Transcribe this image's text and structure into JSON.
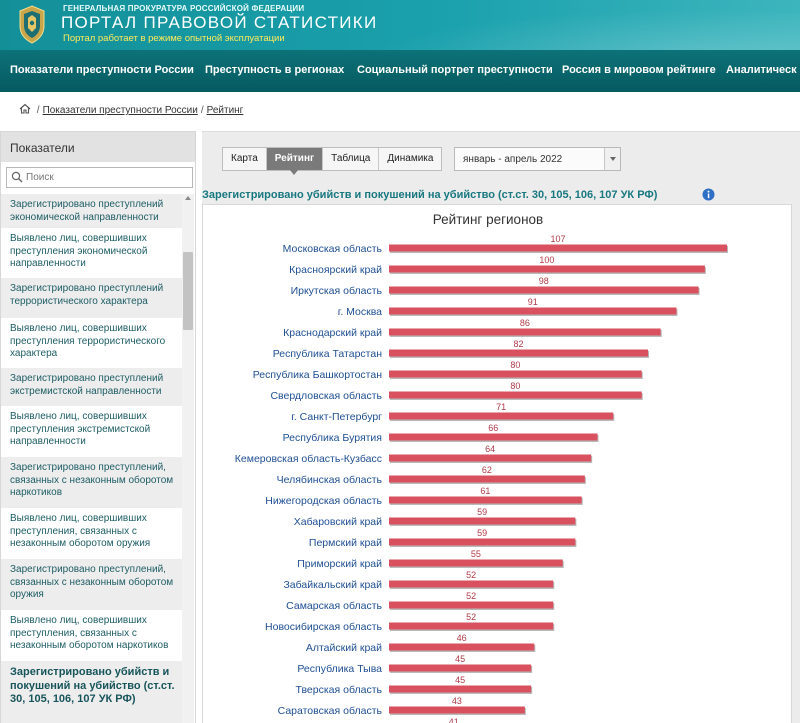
{
  "header": {
    "org_name": "ГЕНЕРАЛЬНАЯ ПРОКУРАТУРА РОССИЙСКОЙ ФЕДЕРАЦИИ",
    "title": "ПОРТАЛ ПРАВОВОЙ СТАТИСТИКИ",
    "subtitle": "Портал работает в режиме опытной эксплуатации"
  },
  "nav": {
    "items": [
      {
        "label": "Показатели преступности России"
      },
      {
        "label": "Преступность в регионах"
      },
      {
        "label": "Социальный портрет преступности"
      },
      {
        "label": "Россия в мировом рейтинге"
      },
      {
        "label": "Аналитическ"
      }
    ]
  },
  "breadcrumb": {
    "items": [
      {
        "label": "Показатели преступности России"
      },
      {
        "label": "Рейтинг"
      }
    ],
    "separator": "/"
  },
  "sidebar": {
    "title": "Показатели",
    "search_placeholder": "Поиск",
    "items": [
      {
        "label": "Зарегистрировано преступлений экономической направленности"
      },
      {
        "label": "Выявлено лиц, совершивших преступления экономической направленности"
      },
      {
        "label": "Зарегистрировано преступлений террористического характера"
      },
      {
        "label": "Выявлено лиц, совершивших преступления террористического характера"
      },
      {
        "label": "Зарегистрировано преступлений экстремистской направленности"
      },
      {
        "label": "Выявлено лиц, совершивших преступления экстремистской направленности"
      },
      {
        "label": "Зарегистрировано преступлений, связанных с незаконным оборотом наркотиков"
      },
      {
        "label": "Выявлено лиц, совершивших преступления, связанных с незаконным оборотом оружия"
      },
      {
        "label": "Зарегистрировано преступлений, связанных с незаконным оборотом оружия"
      },
      {
        "label": "Выявлено лиц, совершивших преступления, связанных с незаконным оборотом наркотиков"
      },
      {
        "label": "Зарегистрировано убийств и покушений на убийство (ст.ст. 30, 105, 106, 107 УК РФ)"
      }
    ]
  },
  "tabs": [
    {
      "label": "Карта"
    },
    {
      "label": "Рейтинг"
    },
    {
      "label": "Таблица"
    },
    {
      "label": "Динамика"
    }
  ],
  "active_tab": "Рейтинг",
  "period": {
    "selected": "январь - апрель 2022"
  },
  "section_title": "Зарегистрировано убийств и покушений на убийство (ст.ст. 30, 105, 106, 107 УК РФ)",
  "colors": {
    "header_teal": "#1aa1ad",
    "nav_dark": "#065a60",
    "subtitle_yellow": "#ffeb5a",
    "bar_red": "#d9515f",
    "label_blue": "#1f4f93",
    "value_label": "#b23a48",
    "title_teal": "#177880"
  },
  "icons": [
    "emblem-icon",
    "home-icon",
    "search-icon",
    "info-icon",
    "chevron-down-icon"
  ],
  "chart_data": {
    "type": "bar",
    "orientation": "horizontal",
    "title": "Рейтинг регионов",
    "categories": [
      "Московская область",
      "Красноярский край",
      "Иркутская область",
      "г. Москва",
      "Краснодарский край",
      "Республика Татарстан",
      "Республика Башкортостан",
      "Свердловская область",
      "г. Санкт-Петербург",
      "Республика Бурятия",
      "Кемеровская область-Кузбасс",
      "Челябинская область",
      "Нижегородская область",
      "Хабаровский край",
      "Пермский край",
      "Приморский край",
      "Забайкальский край",
      "Самарская область",
      "Новосибирская область",
      "Алтайский край",
      "Республика Тыва",
      "Тверская область",
      "Саратовская область"
    ],
    "values": [
      107,
      100,
      98,
      91,
      86,
      82,
      80,
      80,
      71,
      66,
      64,
      62,
      61,
      59,
      59,
      55,
      52,
      52,
      52,
      46,
      45,
      45,
      43
    ],
    "partial_next_value": 41,
    "xlim": [
      0,
      107
    ],
    "grid": false,
    "legend": "none"
  }
}
